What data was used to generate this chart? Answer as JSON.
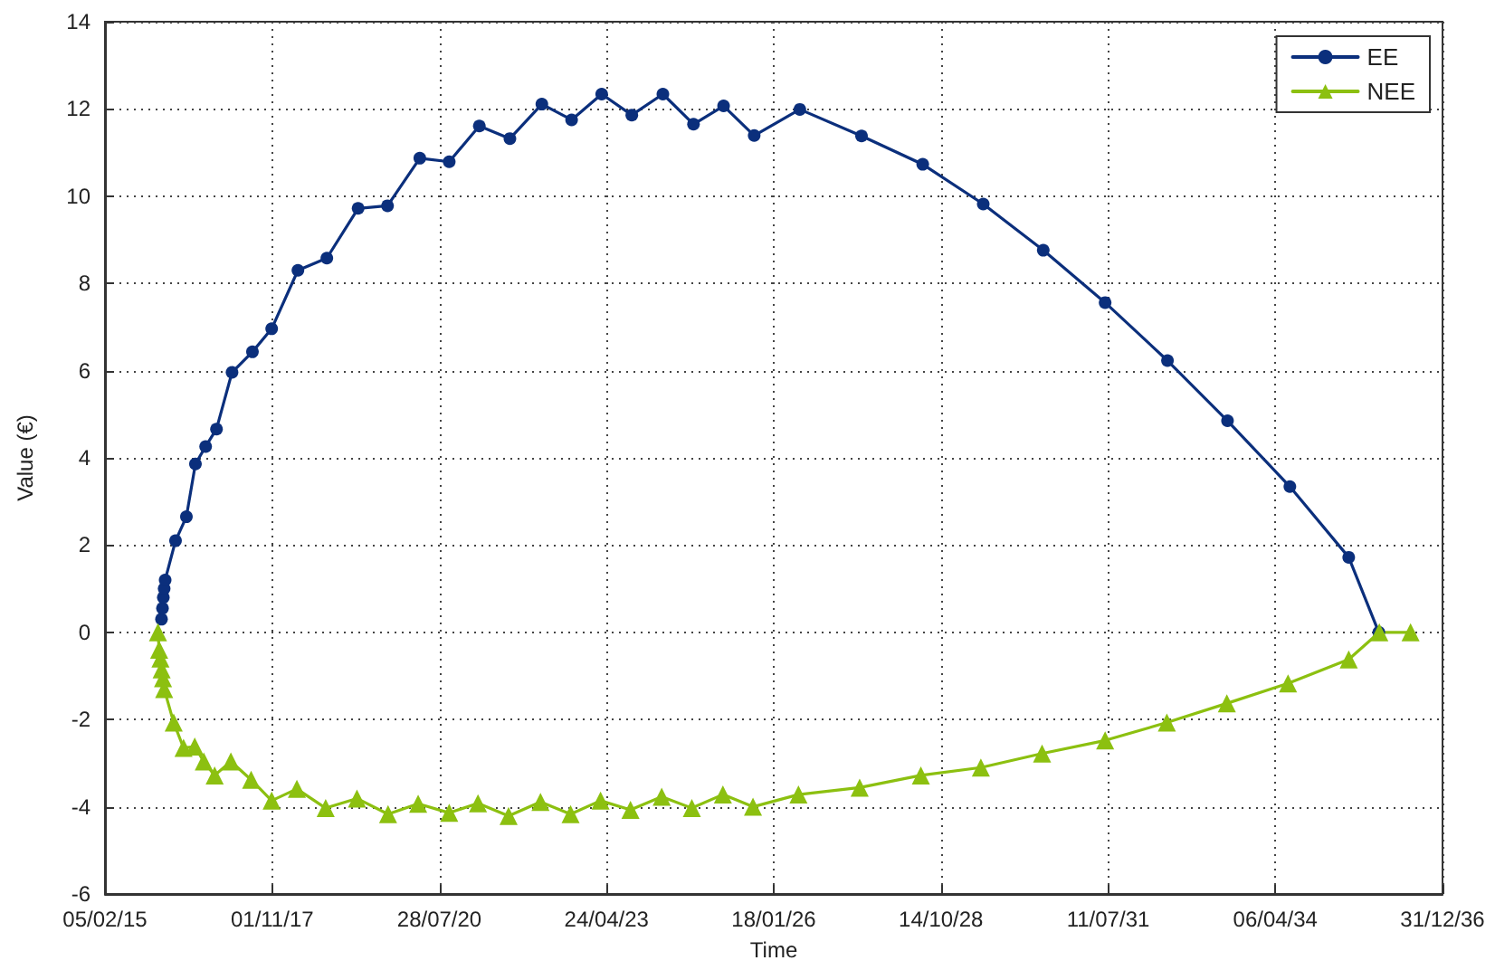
{
  "chart_data": {
    "type": "line",
    "xlabel": "Time",
    "ylabel": "Value (€)",
    "xlim": [
      "2015-02-05",
      "2036-12-31"
    ],
    "xticks": [
      {
        "value": "2015-02-05",
        "label": "05/02/15"
      },
      {
        "value": "2017-11-01",
        "label": "01/11/17"
      },
      {
        "value": "2020-07-28",
        "label": "28/07/20"
      },
      {
        "value": "2023-04-24",
        "label": "24/04/23"
      },
      {
        "value": "2026-01-18",
        "label": "18/01/26"
      },
      {
        "value": "2028-10-14",
        "label": "14/10/28"
      },
      {
        "value": "2031-07-11",
        "label": "11/07/31"
      },
      {
        "value": "2034-04-06",
        "label": "06/04/34"
      },
      {
        "value": "2036-12-31",
        "label": "31/12/36"
      }
    ],
    "ylim": [
      -6,
      14
    ],
    "yticks": [
      -6,
      -4,
      -2,
      0,
      2,
      4,
      6,
      8,
      10,
      12,
      14
    ],
    "grid": true,
    "legend": "top right",
    "line_style": "solid",
    "series": [
      {
        "name": "EE",
        "color": "#0b2f7c",
        "marker": "circle",
        "x": [
          "2016-01-09",
          "2016-01-15",
          "2016-01-20",
          "2016-01-25",
          "2016-01-31",
          "2016-04-02",
          "2016-06-06",
          "2016-07-30",
          "2016-09-29",
          "2016-12-03",
          "2017-03-06",
          "2017-07-06",
          "2017-10-29",
          "2018-04-04",
          "2018-09-24",
          "2019-03-30",
          "2019-09-22",
          "2020-04-02",
          "2020-09-25",
          "2021-03-24",
          "2021-09-23",
          "2022-04-02",
          "2022-09-27",
          "2023-03-26",
          "2023-09-22",
          "2024-03-26",
          "2024-09-25",
          "2025-03-24",
          "2025-09-23",
          "2026-06-23",
          "2027-06-27",
          "2028-06-27",
          "2029-06-24",
          "2030-06-18",
          "2031-06-23",
          "2032-06-30",
          "2033-06-24",
          "2034-07-02",
          "2035-06-19",
          "2035-12-16"
        ],
        "values": [
          0.3,
          0.55,
          0.8,
          1.0,
          1.2,
          2.1,
          2.65,
          3.86,
          4.26,
          4.66,
          5.96,
          6.43,
          6.96,
          8.3,
          8.58,
          9.72,
          9.78,
          10.87,
          10.79,
          11.61,
          11.32,
          12.11,
          11.75,
          12.34,
          11.86,
          12.34,
          11.65,
          12.07,
          11.39,
          11.99,
          11.38,
          10.73,
          9.82,
          8.76,
          7.56,
          6.23,
          4.85,
          3.34,
          1.72,
          0
        ]
      },
      {
        "name": "NEE",
        "color": "#8cc010",
        "marker": "triangle",
        "x": [
          "2015-12-19",
          "2015-12-26",
          "2016-01-03",
          "2016-01-10",
          "2016-01-18",
          "2016-01-25",
          "2016-03-22",
          "2016-05-20",
          "2016-07-26",
          "2016-09-18",
          "2016-11-22",
          "2017-02-27",
          "2017-06-28",
          "2017-10-29",
          "2018-03-29",
          "2018-09-17",
          "2019-03-23",
          "2019-09-25",
          "2020-03-23",
          "2020-09-25",
          "2021-03-16",
          "2021-09-15",
          "2022-03-25",
          "2022-09-21",
          "2023-03-19",
          "2023-09-14",
          "2024-03-19",
          "2024-09-15",
          "2025-03-20",
          "2025-09-16",
          "2026-06-15",
          "2027-06-16",
          "2028-06-16",
          "2029-06-10",
          "2030-06-11",
          "2031-06-23",
          "2032-06-26",
          "2033-06-20",
          "2034-06-21",
          "2035-06-19",
          "2035-12-19",
          "2036-06-23"
        ],
        "values": [
          0,
          -0.4,
          -0.6,
          -0.85,
          -1.05,
          -1.3,
          -2.07,
          -2.65,
          -2.62,
          -2.96,
          -3.28,
          -2.96,
          -3.38,
          -3.86,
          -3.59,
          -4.03,
          -3.81,
          -4.17,
          -3.93,
          -4.14,
          -3.92,
          -4.21,
          -3.89,
          -4.17,
          -3.86,
          -4.07,
          -3.77,
          -4.03,
          -3.72,
          -4.0,
          -3.72,
          -3.56,
          -3.28,
          -3.1,
          -2.78,
          -2.48,
          -2.07,
          -1.63,
          -1.17,
          -0.62,
          0,
          0
        ]
      }
    ]
  }
}
